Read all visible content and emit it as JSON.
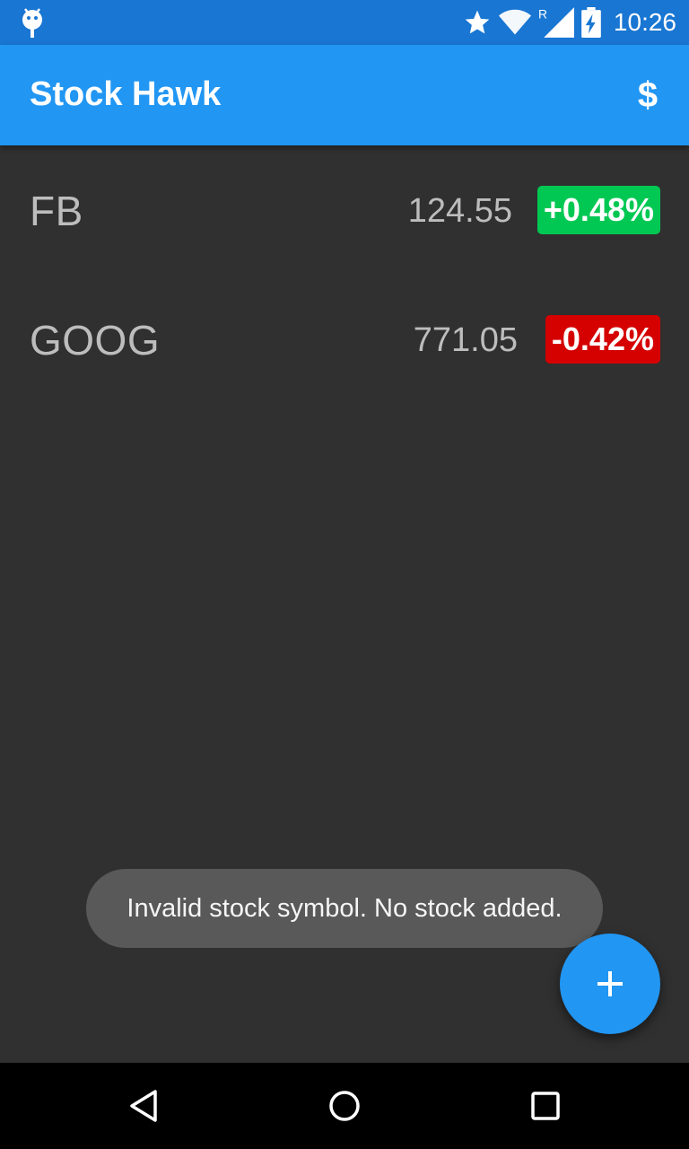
{
  "status_bar": {
    "time": "10:26",
    "icons": [
      "android-notification-icon",
      "star-icon",
      "wifi-icon",
      "signal-icon",
      "battery-charging-icon"
    ],
    "roaming_mark": "R"
  },
  "app_bar": {
    "title": "Stock Hawk",
    "action_icon": "dollar-icon",
    "action_label": "$"
  },
  "stocks": [
    {
      "symbol": "FB",
      "price": "124.55",
      "change": "+0.48%",
      "direction": "up"
    },
    {
      "symbol": "GOOG",
      "price": "771.05",
      "change": "-0.42%",
      "direction": "down"
    }
  ],
  "toast": {
    "message": "Invalid stock symbol. No stock added."
  },
  "fab": {
    "icon": "plus-icon"
  },
  "nav_bar": {
    "icons": [
      "back-icon",
      "home-icon",
      "recents-icon"
    ]
  },
  "colors": {
    "status_bar": "#1976D2",
    "app_bar": "#2196F3",
    "background": "#303030",
    "positive": "#00C853",
    "negative": "#D50000",
    "toast": "#595959",
    "fab": "#2196F3"
  }
}
